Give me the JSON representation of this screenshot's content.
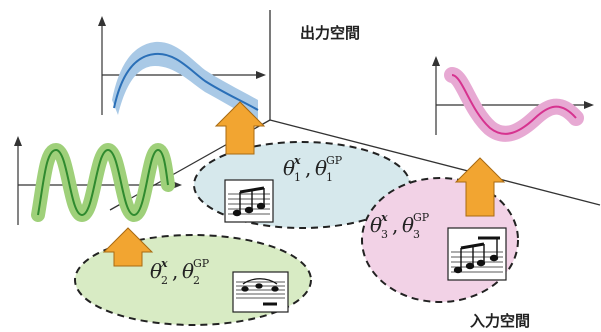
{
  "labels": {
    "output_space": "出力空間",
    "input_space": "入力空間"
  },
  "params": [
    {
      "theta": "θ",
      "sub": "1",
      "sup_x": "x",
      "sup_gp": "GP",
      "sep": ",",
      "fill": "#d6e8ec"
    },
    {
      "theta": "θ",
      "sub": "2",
      "sup_x": "x",
      "sup_gp": "GP",
      "sep": ",",
      "fill": "#d8ebc4"
    },
    {
      "theta": "θ",
      "sub": "3",
      "sup_x": "x",
      "sup_gp": "GP",
      "sep": ",",
      "fill": "#f2d2e6"
    }
  ],
  "colors": {
    "blue_band": "#a9c9e6",
    "blue_line": "#2a6fb7",
    "green_band": "#9fd07a",
    "green_line": "#2f8a2f",
    "pink_band": "#e7a9d3",
    "pink_line": "#d6338f",
    "arrow": "#f2a531",
    "arrow_stroke": "#a86a12"
  }
}
